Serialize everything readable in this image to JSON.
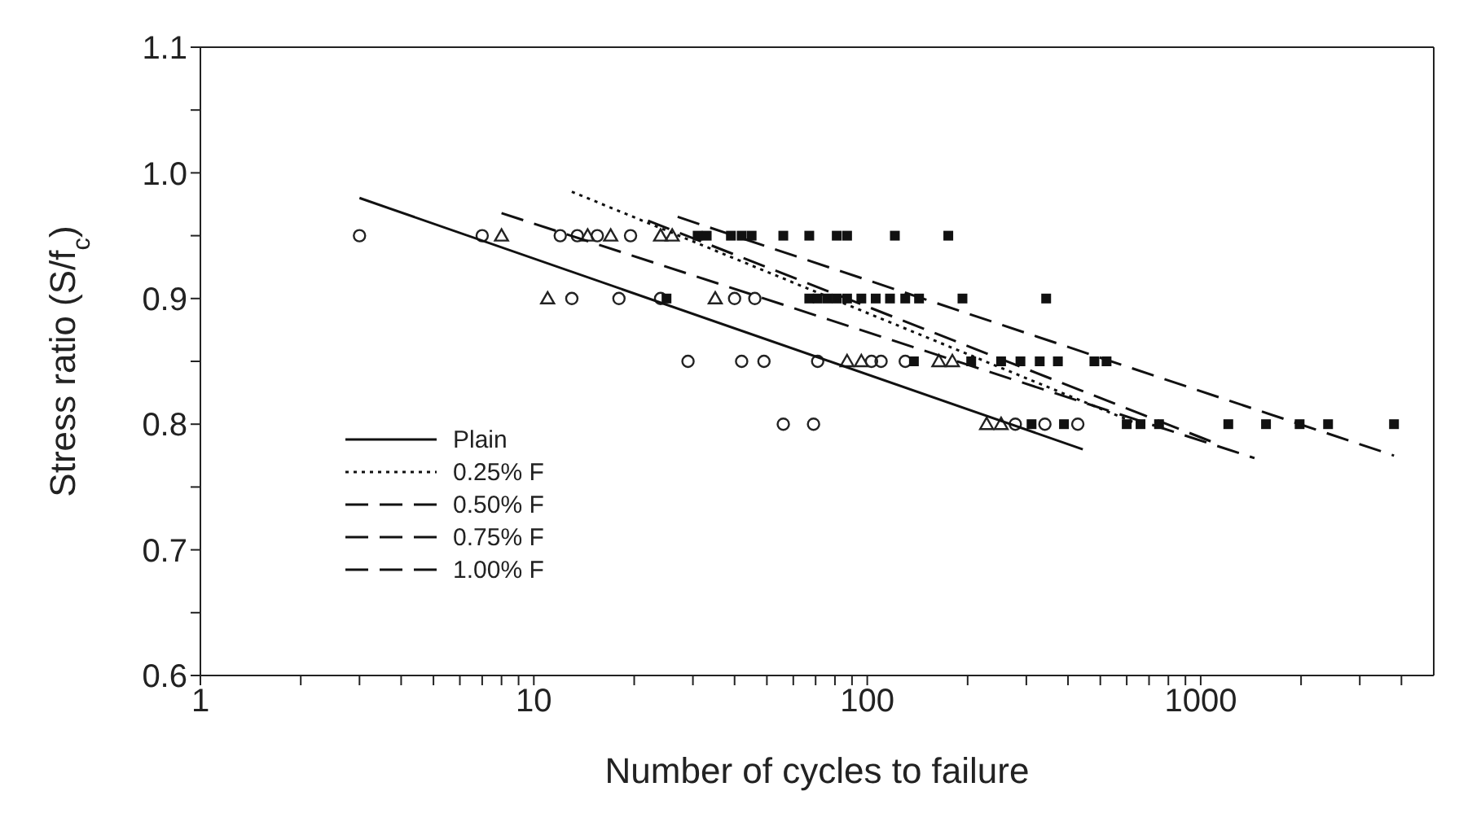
{
  "chart_data": {
    "type": "scatter",
    "xlabel": "Number of cycles to failure",
    "ylabel": "Stress ratio (S/f$_{c}$)",
    "log": "x",
    "xlim": [
      1,
      5000
    ],
    "xticks": [
      1,
      {
        "value": 2,
        "label": null
      },
      {
        "value": 3,
        "label": null
      },
      {
        "value": 4,
        "label": null
      },
      {
        "value": 5,
        "label": null
      },
      {
        "value": 6,
        "label": null
      },
      {
        "value": 7,
        "label": null
      },
      {
        "value": 8,
        "label": null
      },
      {
        "value": 9,
        "label": null
      },
      10,
      {
        "value": 20,
        "label": null
      },
      {
        "value": 30,
        "label": null
      },
      {
        "value": 40,
        "label": null
      },
      {
        "value": 50,
        "label": null
      },
      {
        "value": 60,
        "label": null
      },
      {
        "value": 70,
        "label": null
      },
      {
        "value": 80,
        "label": null
      },
      {
        "value": 90,
        "label": null
      },
      100,
      {
        "value": 200,
        "label": null
      },
      {
        "value": 300,
        "label": null
      },
      {
        "value": 400,
        "label": null
      },
      {
        "value": 500,
        "label": null
      },
      {
        "value": 600,
        "label": null
      },
      {
        "value": 700,
        "label": null
      },
      {
        "value": 800,
        "label": null
      },
      {
        "value": 900,
        "label": null
      },
      1000,
      {
        "value": 2000,
        "label": null
      },
      {
        "value": 3000,
        "label": null
      },
      {
        "value": 4000,
        "label": null
      }
    ],
    "ylim": [
      0.6,
      1.1
    ],
    "yticks": [
      {
        "value": 0.6,
        "label": "0.6"
      },
      {
        "value": 0.65,
        "label": null
      },
      {
        "value": 0.7,
        "label": "0.7"
      },
      {
        "value": 0.75,
        "label": null
      },
      {
        "value": 0.8,
        "label": "0.8"
      },
      {
        "value": 0.85,
        "label": null
      },
      {
        "value": 0.9,
        "label": "0.9"
      },
      {
        "value": 0.95,
        "label": null
      },
      {
        "value": 1.0,
        "label": "1.0"
      },
      {
        "value": 1.05,
        "label": null
      },
      {
        "value": 1.1,
        "label": "1.1"
      }
    ],
    "grid": false,
    "legend": "left",
    "series": [
      {
        "type": "scatter",
        "marker": "circle",
        "color": "#222222",
        "x": [
          3,
          7,
          12,
          13.5,
          15.5,
          19.5,
          13,
          18,
          24,
          40,
          46,
          29,
          42,
          49,
          71,
          103,
          110,
          130,
          56,
          69,
          278,
          341,
          428
        ],
        "values": [
          0.95,
          0.95,
          0.95,
          0.95,
          0.95,
          0.95,
          0.9,
          0.9,
          0.9,
          0.9,
          0.9,
          0.85,
          0.85,
          0.85,
          0.85,
          0.85,
          0.85,
          0.85,
          0.8,
          0.8,
          0.8,
          0.8,
          0.8
        ]
      },
      {
        "type": "scatter",
        "marker": "triangle",
        "color": "#222222",
        "x": [
          8,
          14.5,
          17,
          24,
          26,
          11,
          35,
          87,
          96,
          164,
          180,
          228,
          252
        ],
        "values": [
          0.95,
          0.95,
          0.95,
          0.95,
          0.95,
          0.9,
          0.9,
          0.85,
          0.85,
          0.85,
          0.85,
          0.8,
          0.8
        ]
      },
      {
        "type": "scatter",
        "marker": "square",
        "color": "#111111",
        "x": [
          31,
          33,
          39,
          42,
          45,
          56,
          67,
          81,
          87,
          121,
          175,
          25,
          67,
          71,
          76,
          81,
          87,
          96,
          106,
          117,
          130,
          143,
          193,
          344,
          138,
          205,
          252,
          288,
          329,
          373,
          480,
          522,
          311,
          389,
          600,
          660,
          750,
          1210,
          1570,
          1980,
          2410,
          3800
        ],
        "values": [
          0.95,
          0.95,
          0.95,
          0.95,
          0.95,
          0.95,
          0.95,
          0.95,
          0.95,
          0.95,
          0.95,
          0.9,
          0.9,
          0.9,
          0.9,
          0.9,
          0.9,
          0.9,
          0.9,
          0.9,
          0.9,
          0.9,
          0.9,
          0.9,
          0.85,
          0.85,
          0.85,
          0.85,
          0.85,
          0.85,
          0.85,
          0.85,
          0.8,
          0.8,
          0.8,
          0.8,
          0.8,
          0.8,
          0.8,
          0.8,
          0.8,
          0.8
        ]
      },
      {
        "type": "line",
        "name": "Plain",
        "line_style": "solid",
        "marker": "none",
        "color": "#111111",
        "x": [
          3,
          443
        ],
        "values": [
          0.98,
          0.78
        ]
      },
      {
        "type": "line",
        "name": "0.25% F",
        "line_style": "dotted",
        "marker": "none",
        "color": "#111111",
        "x": [
          13,
          650
        ],
        "values": [
          0.985,
          0.8
        ]
      },
      {
        "type": "line",
        "name": "0.50% F",
        "line_style": "dashed",
        "marker": "none",
        "color": "#111111",
        "x": [
          8,
          1450
        ],
        "values": [
          0.968,
          0.773
        ]
      },
      {
        "type": "line",
        "name": "0.75% F",
        "line_style": "dashed",
        "marker": "none",
        "color": "#111111",
        "x": [
          22,
          1080
        ],
        "values": [
          0.962,
          0.786
        ]
      },
      {
        "type": "line",
        "name": "1.00% F",
        "line_style": "dashed",
        "marker": "none",
        "color": "#111111",
        "x": [
          27,
          3800
        ],
        "values": [
          0.965,
          0.775
        ]
      }
    ]
  }
}
